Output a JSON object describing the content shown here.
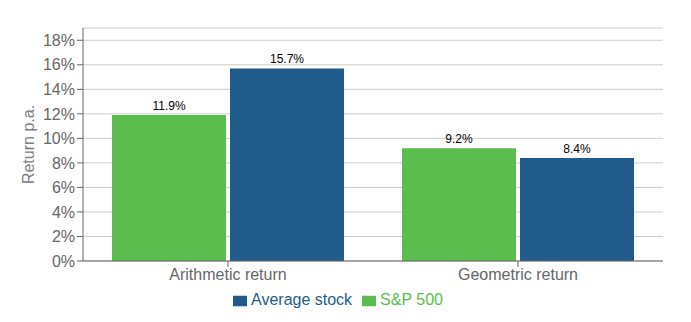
{
  "chart_data": {
    "type": "bar",
    "categories": [
      "Arithmetic return",
      "Geometric return"
    ],
    "series": [
      {
        "name": "S&P 500",
        "color": "#5BBD4E",
        "values": [
          0.119,
          0.092
        ],
        "value_labels": [
          "11.9%",
          "9.2%"
        ]
      },
      {
        "name": "Average stock",
        "color": "#1F5C8B",
        "values": [
          0.157,
          0.084
        ],
        "value_labels": [
          "15.7%",
          "8.4%"
        ]
      }
    ],
    "ylabel": "Return p.a.",
    "ylim": [
      0,
      0.19
    ],
    "yticks": [
      {
        "value": 0.0,
        "label": "0%"
      },
      {
        "value": 0.02,
        "label": "2%"
      },
      {
        "value": 0.04,
        "label": "4%"
      },
      {
        "value": 0.06,
        "label": "6%"
      },
      {
        "value": 0.08,
        "label": "8%"
      },
      {
        "value": 0.1,
        "label": "10%"
      },
      {
        "value": 0.12,
        "label": "12%"
      },
      {
        "value": 0.14,
        "label": "14%"
      },
      {
        "value": 0.16,
        "label": "16%"
      },
      {
        "value": 0.18,
        "label": "18%"
      }
    ],
    "grid": true,
    "legend": "bottom",
    "data_labels": true
  }
}
